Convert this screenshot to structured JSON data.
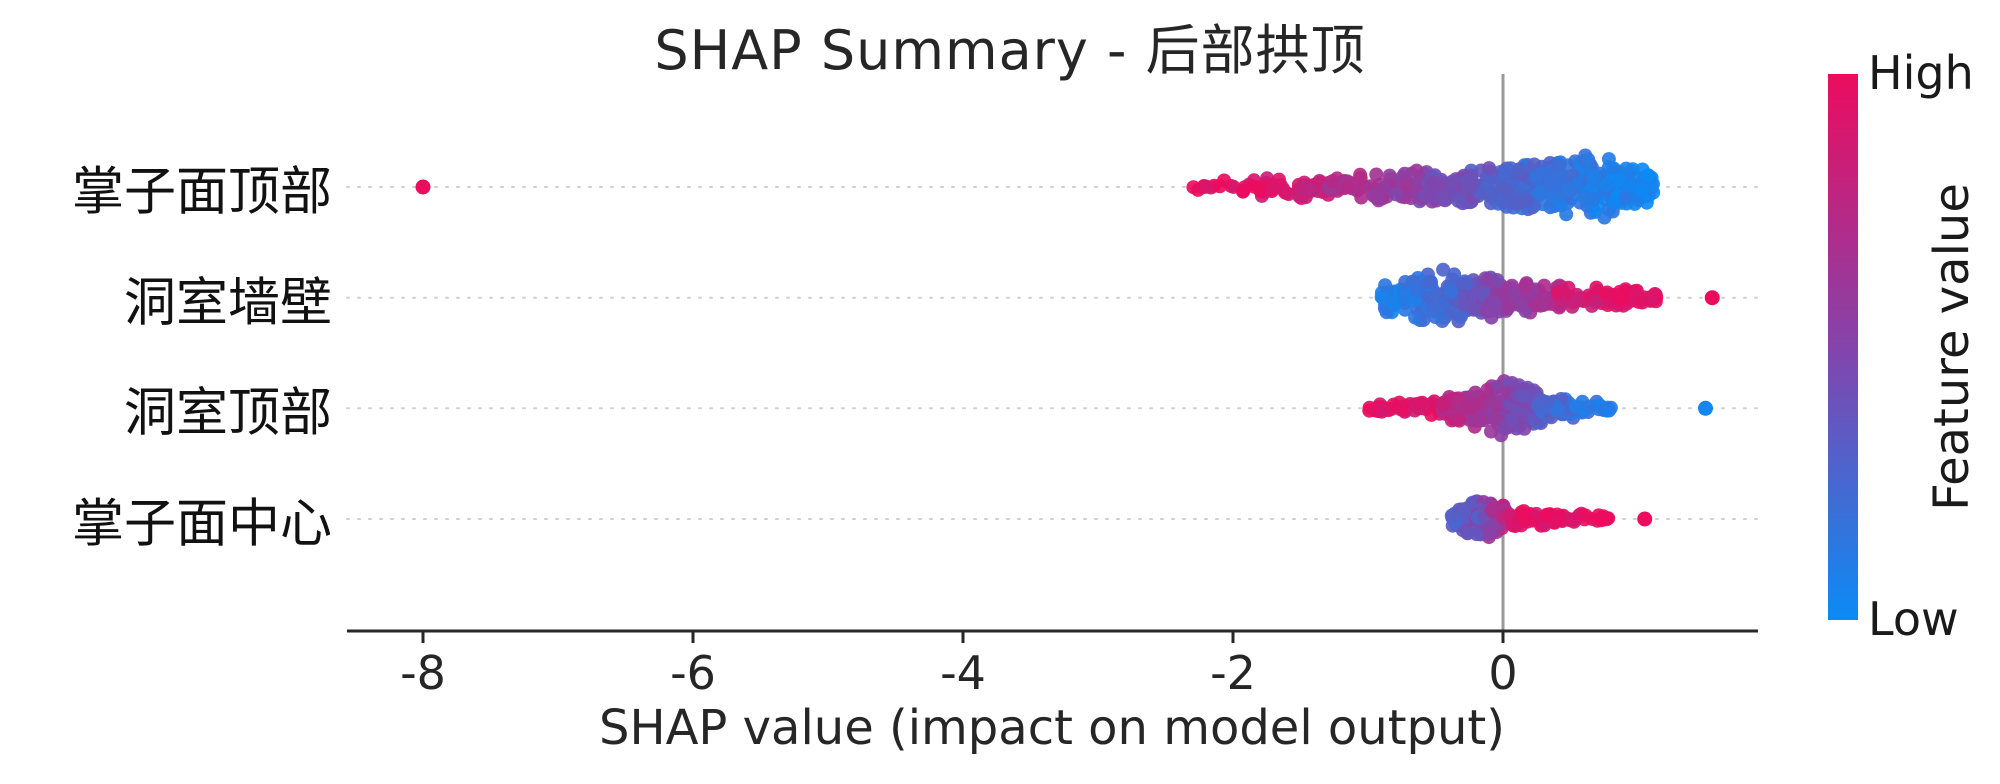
{
  "chart_data": {
    "type": "scatter",
    "variant": "shap-beeswarm-summary",
    "title": "SHAP Summary - 后部拱顶",
    "xlabel": "SHAP value (impact on model output)",
    "x_ticks": [
      -8,
      -6,
      -4,
      -2,
      0
    ],
    "xlim": [
      -8.6,
      1.9
    ],
    "grid": "dotted horizontal line per feature row",
    "zero_reference_line": 0,
    "legend_position": "right-colorbar",
    "seed": 7,
    "colorbar": {
      "label": "Feature value",
      "high": "High",
      "low": "Low",
      "color_high": "#ec0c5e",
      "color_mid": "#8444ab",
      "color_low": "#0b8bf5"
    },
    "features": [
      {
        "name": "掌子面顶部",
        "outliers": [
          {
            "x": -8.0,
            "v": 1.0
          }
        ],
        "clusters": [
          {
            "x0": -2.3,
            "x1": -1.75,
            "n": 16,
            "s0": 6,
            "s1": 9,
            "v0": 1.0,
            "v1": 0.92
          },
          {
            "x0": -1.85,
            "x1": -1.25,
            "n": 40,
            "s0": 10,
            "s1": 13,
            "v0": 0.95,
            "v1": 0.75
          },
          {
            "x0": -1.3,
            "x1": -0.55,
            "n": 85,
            "s0": 14,
            "s1": 18,
            "v0": 0.72,
            "v1": 0.5
          },
          {
            "x0": -0.6,
            "x1": 0.05,
            "n": 110,
            "s0": 17,
            "s1": 23,
            "v0": 0.48,
            "v1": 0.3
          },
          {
            "x0": 0.0,
            "x1": 0.65,
            "n": 150,
            "s0": 23,
            "s1": 36,
            "v0": 0.28,
            "v1": 0.12
          },
          {
            "x0": 0.6,
            "x1": 1.12,
            "n": 120,
            "s0": 36,
            "s1": 20,
            "v0": 0.12,
            "v1": 0.03
          }
        ]
      },
      {
        "name": "洞室墙壁",
        "outliers": [
          {
            "x": 1.55,
            "v": 1.0
          }
        ],
        "clusters": [
          {
            "x0": -0.9,
            "x1": -0.5,
            "n": 65,
            "s0": 15,
            "s1": 30,
            "v0": 0.06,
            "v1": 0.2
          },
          {
            "x0": -0.55,
            "x1": -0.1,
            "n": 105,
            "s0": 30,
            "s1": 23,
            "v0": 0.18,
            "v1": 0.42
          },
          {
            "x0": -0.15,
            "x1": 0.45,
            "n": 105,
            "s0": 23,
            "s1": 15,
            "v0": 0.45,
            "v1": 0.75
          },
          {
            "x0": 0.4,
            "x1": 1.15,
            "n": 80,
            "s0": 14,
            "s1": 7,
            "v0": 0.85,
            "v1": 1.0
          }
        ]
      },
      {
        "name": "洞室顶部",
        "outliers": [
          {
            "x": 1.5,
            "v": 0.03
          }
        ],
        "clusters": [
          {
            "x0": -1.0,
            "x1": -0.4,
            "n": 48,
            "s0": 5,
            "s1": 9,
            "v0": 0.98,
            "v1": 0.88
          },
          {
            "x0": -0.45,
            "x1": 0.0,
            "n": 115,
            "s0": 10,
            "s1": 33,
            "v0": 0.8,
            "v1": 0.55
          },
          {
            "x0": 0.0,
            "x1": 0.3,
            "n": 105,
            "s0": 33,
            "s1": 18,
            "v0": 0.52,
            "v1": 0.35
          },
          {
            "x0": 0.25,
            "x1": 0.8,
            "n": 60,
            "s0": 15,
            "s1": 6,
            "v0": 0.3,
            "v1": 0.08
          }
        ]
      },
      {
        "name": "掌子面中心",
        "outliers": [
          {
            "x": 1.05,
            "v": 1.0
          }
        ],
        "clusters": [
          {
            "x0": -0.38,
            "x1": -0.18,
            "n": 55,
            "s0": 10,
            "s1": 23,
            "v0": 0.25,
            "v1": 0.45,
            "noise": 0.3
          },
          {
            "x0": -0.2,
            "x1": 0.02,
            "n": 90,
            "s0": 25,
            "s1": 15,
            "v0": 0.4,
            "v1": 0.7,
            "noise": 0.3
          },
          {
            "x0": 0.0,
            "x1": 0.45,
            "n": 55,
            "s0": 10,
            "s1": 7,
            "v0": 0.92,
            "v1": 1.0
          },
          {
            "x0": 0.4,
            "x1": 0.78,
            "n": 25,
            "s0": 6,
            "s1": 5,
            "v0": 0.95,
            "v1": 1.0
          }
        ]
      }
    ]
  }
}
